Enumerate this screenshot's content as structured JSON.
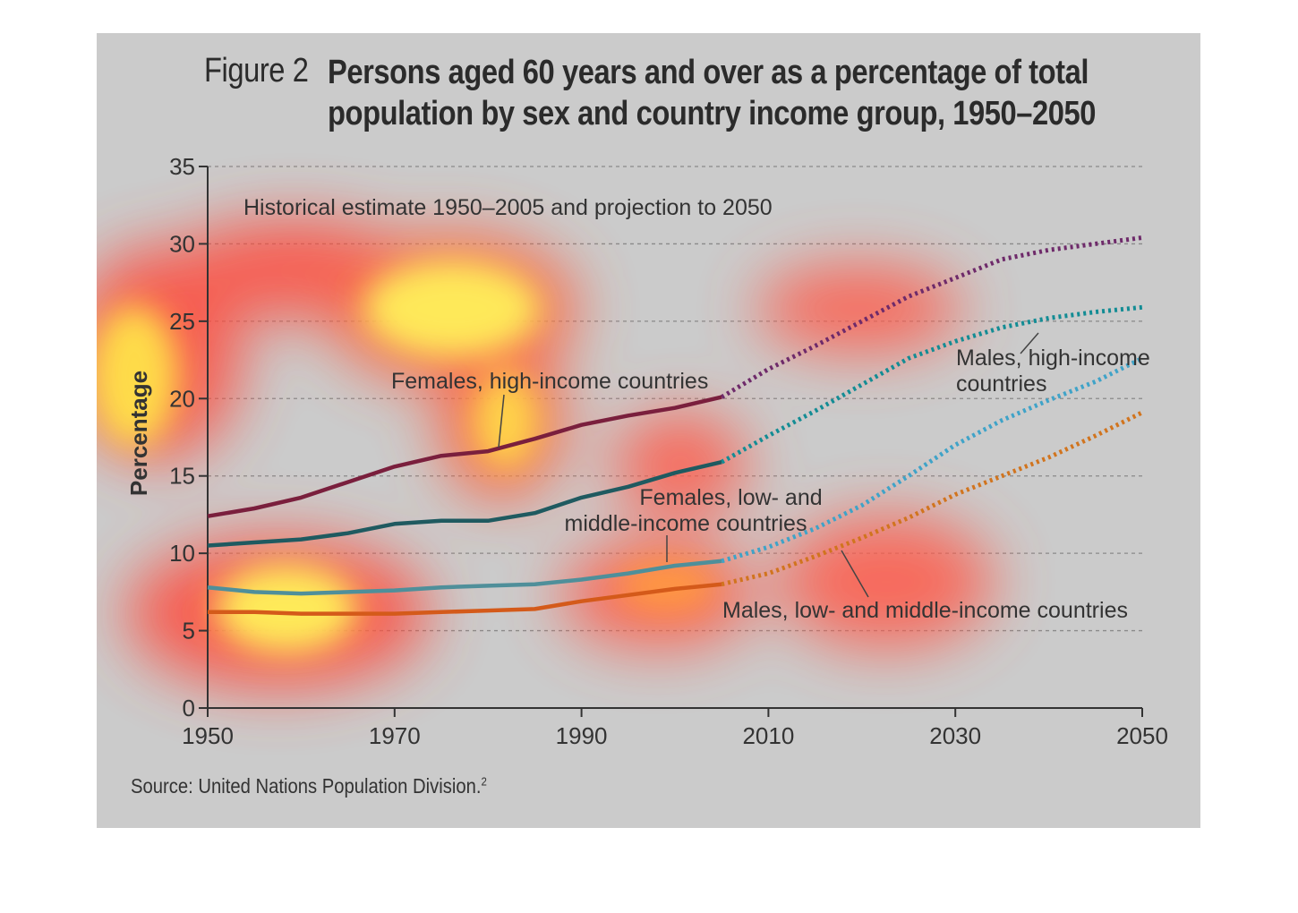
{
  "figure": {
    "label": "Figure 2",
    "title_lines": [
      "Persons aged 60 years and over as a percentage of total",
      "population by sex and country income group, 1950–2050"
    ],
    "source": "Source: United Nations Population Division.",
    "source_note": "2"
  },
  "chart_data": {
    "type": "line",
    "title": "Persons aged 60 years and over as a percentage of total population by sex and country income group, 1950–2050",
    "subtitle": "Historical estimate 1950–2005 and projection to 2050",
    "xlabel": "",
    "ylabel": "Percentage",
    "xlim": [
      1950,
      2050
    ],
    "ylim": [
      0,
      35
    ],
    "x_ticks": [
      1950,
      1970,
      1990,
      2010,
      2030,
      2050
    ],
    "y_ticks": [
      0,
      5,
      10,
      15,
      20,
      25,
      30,
      35
    ],
    "grid": "horizontal dashed",
    "historical_end": 2005,
    "series": [
      {
        "name": "Females, high-income countries",
        "color": "#7a1f3d",
        "projection_color": "#6e2a6a",
        "points": [
          [
            1950,
            12.4
          ],
          [
            1955,
            12.9
          ],
          [
            1960,
            13.6
          ],
          [
            1965,
            14.6
          ],
          [
            1970,
            15.6
          ],
          [
            1975,
            16.3
          ],
          [
            1980,
            16.6
          ],
          [
            1985,
            17.4
          ],
          [
            1990,
            18.3
          ],
          [
            1995,
            18.9
          ],
          [
            2000,
            19.4
          ],
          [
            2005,
            20.1
          ],
          [
            2010,
            21.9
          ],
          [
            2015,
            23.4
          ],
          [
            2020,
            25.0
          ],
          [
            2025,
            26.6
          ],
          [
            2030,
            27.8
          ],
          [
            2035,
            29.0
          ],
          [
            2040,
            29.6
          ],
          [
            2045,
            30.0
          ],
          [
            2050,
            30.4
          ]
        ]
      },
      {
        "name": "Males, high-income countries",
        "color": "#1f5a60",
        "projection_color": "#138c94",
        "points": [
          [
            1950,
            10.5
          ],
          [
            1955,
            10.7
          ],
          [
            1960,
            10.9
          ],
          [
            1965,
            11.3
          ],
          [
            1970,
            11.9
          ],
          [
            1975,
            12.1
          ],
          [
            1980,
            12.1
          ],
          [
            1985,
            12.6
          ],
          [
            1990,
            13.6
          ],
          [
            1995,
            14.3
          ],
          [
            2000,
            15.2
          ],
          [
            2005,
            15.9
          ],
          [
            2010,
            17.6
          ],
          [
            2015,
            19.2
          ],
          [
            2020,
            20.9
          ],
          [
            2025,
            22.6
          ],
          [
            2030,
            23.7
          ],
          [
            2035,
            24.6
          ],
          [
            2040,
            25.2
          ],
          [
            2045,
            25.6
          ],
          [
            2050,
            25.9
          ]
        ]
      },
      {
        "name": "Females, low- and middle-income countries",
        "color": "#4f8f9a",
        "projection_color": "#3fa3c8",
        "points": [
          [
            1950,
            7.8
          ],
          [
            1955,
            7.5
          ],
          [
            1960,
            7.4
          ],
          [
            1965,
            7.5
          ],
          [
            1970,
            7.6
          ],
          [
            1975,
            7.8
          ],
          [
            1980,
            7.9
          ],
          [
            1985,
            8.0
          ],
          [
            1990,
            8.3
          ],
          [
            1995,
            8.7
          ],
          [
            2000,
            9.2
          ],
          [
            2005,
            9.5
          ],
          [
            2010,
            10.4
          ],
          [
            2015,
            11.6
          ],
          [
            2020,
            13.1
          ],
          [
            2025,
            15.0
          ],
          [
            2030,
            17.0
          ],
          [
            2035,
            18.6
          ],
          [
            2040,
            19.9
          ],
          [
            2045,
            21.1
          ],
          [
            2050,
            22.6
          ]
        ]
      },
      {
        "name": "Males, low- and middle-income countries",
        "color": "#d45a1a",
        "projection_color": "#d1741e",
        "points": [
          [
            1950,
            6.2
          ],
          [
            1955,
            6.2
          ],
          [
            1960,
            6.1
          ],
          [
            1965,
            6.1
          ],
          [
            1970,
            6.1
          ],
          [
            1975,
            6.2
          ],
          [
            1980,
            6.3
          ],
          [
            1985,
            6.4
          ],
          [
            1990,
            6.9
          ],
          [
            1995,
            7.3
          ],
          [
            2000,
            7.7
          ],
          [
            2005,
            8.0
          ],
          [
            2010,
            8.7
          ],
          [
            2015,
            9.8
          ],
          [
            2020,
            11.0
          ],
          [
            2025,
            12.3
          ],
          [
            2030,
            13.8
          ],
          [
            2035,
            15.0
          ],
          [
            2040,
            16.2
          ],
          [
            2045,
            17.6
          ],
          [
            2050,
            19.1
          ]
        ]
      }
    ],
    "annotations": [
      {
        "text": "Females, high-income countries",
        "lines": [
          "Females, high-income countries"
        ]
      },
      {
        "text": "Males, high-income countries",
        "lines": [
          "Males, high-income",
          "countries"
        ]
      },
      {
        "text": "Females, low- and middle-income countries",
        "lines": [
          "Females, low- and",
          "middle-income countries"
        ]
      },
      {
        "text": "Males, low- and middle-income countries",
        "lines": [
          "Males, low- and middle-income countries"
        ]
      }
    ]
  }
}
